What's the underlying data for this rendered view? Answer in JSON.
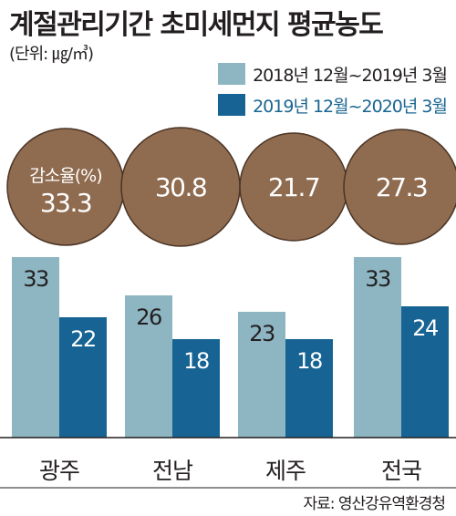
{
  "title": "계절관리기간 초미세먼지 평균농도",
  "unit": "(단위: ㎍/㎥)",
  "source": "자료: 영산강유역환경청",
  "colors": {
    "series1": "#8db6c2",
    "series2": "#176494",
    "circle": "#8f6b4f",
    "circle_stroke": "#4a3526"
  },
  "chart_data": {
    "type": "bar",
    "categories": [
      "광주",
      "전남",
      "제주",
      "전국"
    ],
    "series": [
      {
        "name": "2018년 12월~2019년 3월",
        "values": [
          33,
          26,
          23,
          33
        ]
      },
      {
        "name": "2019년 12월~2020년 3월",
        "values": [
          22,
          18,
          18,
          24
        ]
      }
    ],
    "reduction": {
      "label": "감소율(%)",
      "values": [
        "33.3",
        "30.8",
        "21.7",
        "27.3"
      ]
    }
  }
}
